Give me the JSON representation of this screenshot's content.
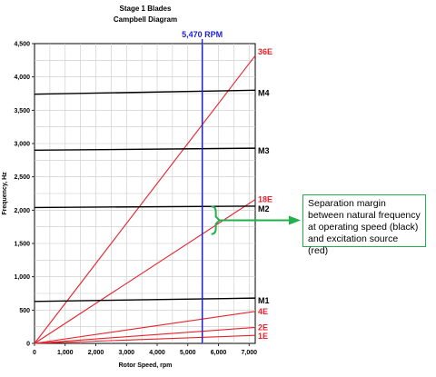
{
  "chart_data": {
    "type": "line",
    "title": "Stage 1 Blades",
    "subtitle": "Campbell Diagram",
    "xlabel": "Rotor Speed, rpm",
    "ylabel": "Frequency, Hz",
    "xlim": [
      0,
      7200
    ],
    "ylim": [
      0,
      4500
    ],
    "x_ticks": [
      0,
      1000,
      2000,
      3000,
      4000,
      5000,
      6000,
      7000
    ],
    "x_tick_labels": [
      "0",
      "1,000",
      "2,000",
      "3,000",
      "4,000",
      "5,000",
      "6,000",
      "7,000"
    ],
    "y_ticks": [
      0,
      500,
      1000,
      1500,
      2000,
      2500,
      3000,
      3500,
      4000,
      4500
    ],
    "y_tick_labels": [
      "0",
      "500",
      "1,000",
      "1,500",
      "2,000",
      "2,500",
      "3,000",
      "3,500",
      "4,000",
      "4,500"
    ],
    "grid": true,
    "operating_speed": {
      "value": 5470,
      "label": "5,470 RPM",
      "color": "#1f1fd6"
    },
    "natural_frequencies": [
      {
        "name": "M1",
        "x": [
          0,
          7200
        ],
        "y": [
          630,
          680
        ],
        "color": "#000000"
      },
      {
        "name": "M2",
        "x": [
          0,
          7200
        ],
        "y": [
          2040,
          2060
        ],
        "color": "#000000"
      },
      {
        "name": "M3",
        "x": [
          0,
          7200
        ],
        "y": [
          2900,
          2930
        ],
        "color": "#000000"
      },
      {
        "name": "M4",
        "x": [
          0,
          7200
        ],
        "y": [
          3740,
          3800
        ],
        "color": "#000000"
      }
    ],
    "excitations": [
      {
        "name": "1E",
        "x": [
          0,
          7200
        ],
        "y": [
          0,
          120
        ],
        "color": "#e8222a"
      },
      {
        "name": "2E",
        "x": [
          0,
          7200
        ],
        "y": [
          0,
          240
        ],
        "color": "#e8222a"
      },
      {
        "name": "4E",
        "x": [
          0,
          7200
        ],
        "y": [
          0,
          480
        ],
        "color": "#e8222a"
      },
      {
        "name": "18E",
        "x": [
          0,
          7200
        ],
        "y": [
          0,
          2160
        ],
        "color": "#e8222a"
      },
      {
        "name": "36E",
        "x": [
          0,
          7200
        ],
        "y": [
          0,
          4320
        ],
        "color": "#e8222a"
      }
    ],
    "annotation": {
      "text": "Separation margin between natural frequency at operating speed (black) and excitation source (red)",
      "range_y": [
        1641,
        2055
      ],
      "color": "#22b04b"
    }
  }
}
